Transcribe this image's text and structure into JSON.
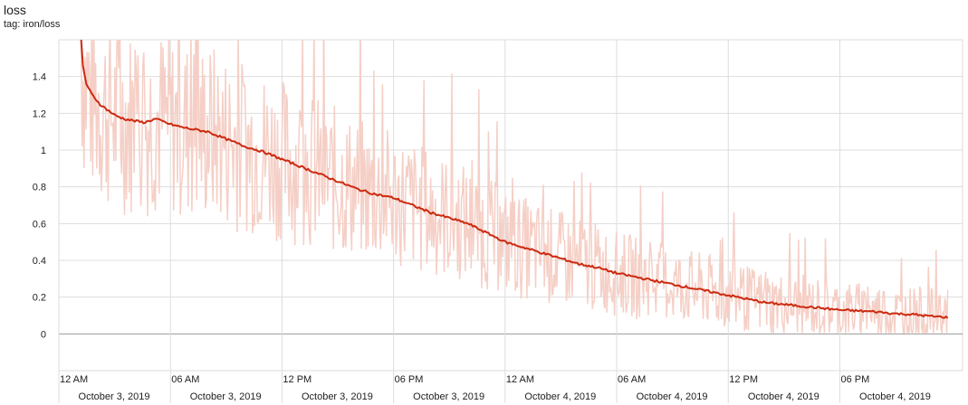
{
  "header": {
    "title": "loss",
    "subtitle": "tag: iron/loss"
  },
  "chart_data": {
    "type": "line",
    "title": "loss",
    "subtitle": "tag: iron/loss",
    "xlabel": "",
    "ylabel": "",
    "grid": true,
    "legend": "none",
    "colors": {
      "smoothed": "#cc2a0f",
      "raw": "#f5cfc6",
      "grid": "#dddddd",
      "zero_line": "#999999"
    },
    "ylim": [
      -0.2,
      1.6
    ],
    "xlim_hours": [
      0,
      48.6
    ],
    "y_ticks": [
      0,
      0.2,
      0.4,
      0.6,
      0.8,
      1,
      1.2,
      1.4
    ],
    "y_tick_labels": [
      "0",
      "0.2",
      "0.4",
      "0.6",
      "0.8",
      "1",
      "1.2",
      "1.4"
    ],
    "x_ticks": [
      {
        "time": "12 AM",
        "date": "October 3, 2019"
      },
      {
        "time": "06 AM",
        "date": "October 3, 2019"
      },
      {
        "time": "12 PM",
        "date": "October 3, 2019"
      },
      {
        "time": "06 PM",
        "date": "October 3, 2019"
      },
      {
        "time": "12 AM",
        "date": "October 4, 2019"
      },
      {
        "time": "06 AM",
        "date": "October 4, 2019"
      },
      {
        "time": "12 PM",
        "date": "October 4, 2019"
      },
      {
        "time": "06 PM",
        "date": "October 4, 2019"
      }
    ],
    "series": [
      {
        "name": "",
        "style": "smoothed",
        "x_hours": [
          1.2,
          1.3,
          1.5,
          1.8,
          2.2,
          2.6,
          3.0,
          3.5,
          4.0,
          4.6,
          5.2,
          6.0,
          6.8,
          7.4,
          8.0,
          9.0,
          10.0,
          11.0,
          12.0,
          13.0,
          14.0,
          15.0,
          16.0,
          17.0,
          18.0,
          19.0,
          20.0,
          21.0,
          22.0,
          23.0,
          24.0,
          25.0,
          26.0,
          27.0,
          28.0,
          29.0,
          30.0,
          31.0,
          32.0,
          33.0,
          34.0,
          35.0,
          36.0,
          37.0,
          38.0,
          39.0,
          40.0,
          41.0,
          42.0,
          43.0,
          44.0,
          45.0,
          46.0,
          47.0,
          47.8
        ],
        "values": [
          1.6,
          1.45,
          1.35,
          1.3,
          1.25,
          1.22,
          1.19,
          1.17,
          1.16,
          1.15,
          1.17,
          1.14,
          1.12,
          1.11,
          1.1,
          1.06,
          1.02,
          0.99,
          0.95,
          0.91,
          0.87,
          0.83,
          0.79,
          0.76,
          0.74,
          0.7,
          0.66,
          0.63,
          0.6,
          0.55,
          0.5,
          0.47,
          0.44,
          0.41,
          0.38,
          0.36,
          0.33,
          0.31,
          0.29,
          0.27,
          0.25,
          0.23,
          0.21,
          0.19,
          0.17,
          0.16,
          0.15,
          0.14,
          0.13,
          0.125,
          0.12,
          0.11,
          0.105,
          0.095,
          0.09
        ]
      }
    ]
  }
}
